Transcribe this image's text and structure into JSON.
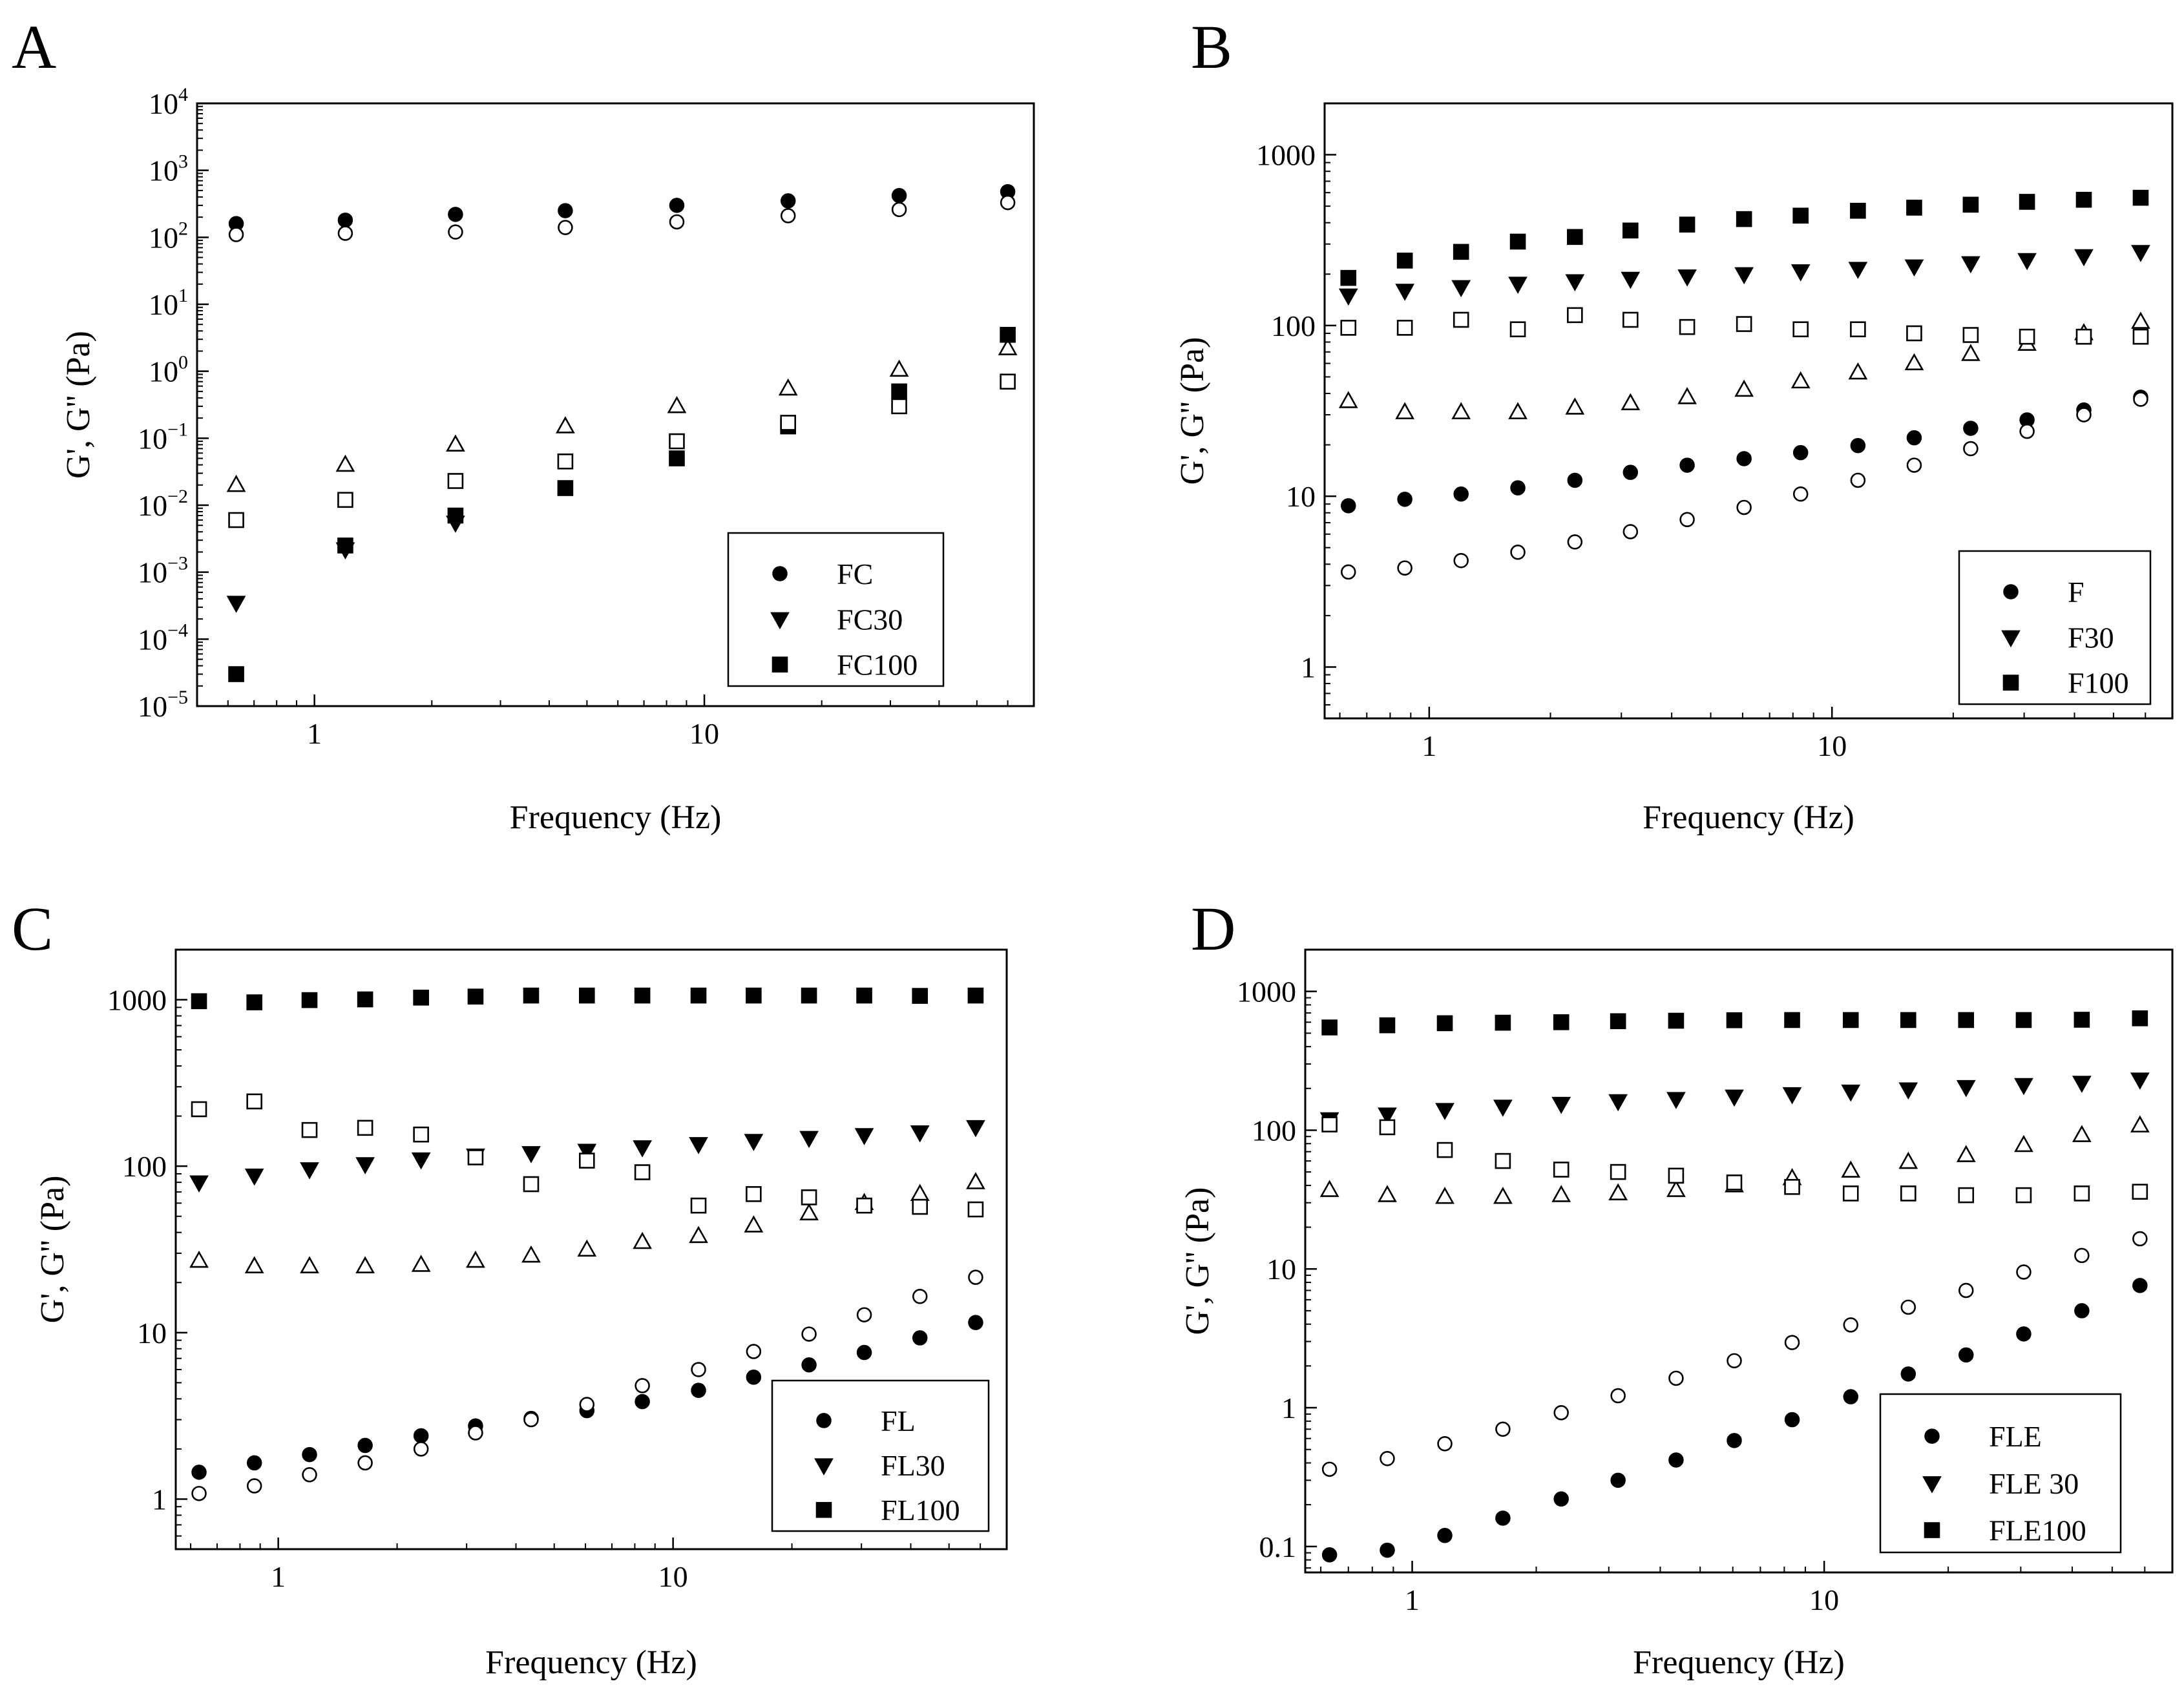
{
  "chart_data": [
    {
      "panel": "A",
      "type": "scatter",
      "xlabel": "Frequency (Hz)",
      "ylabel": "G', G'' (Pa)",
      "x_scale": "log",
      "y_scale": "log",
      "xlim": [
        0.5,
        70
      ],
      "ylim": [
        1e-05,
        10000
      ],
      "x_ticks": [
        {
          "v": 1,
          "label": "1"
        },
        {
          "v": 10,
          "label": "10"
        }
      ],
      "y_ticks": [
        {
          "v": 1e-05,
          "base": "10",
          "exp": "−5"
        },
        {
          "v": 0.0001,
          "base": "10",
          "exp": "−4"
        },
        {
          "v": 0.001,
          "base": "10",
          "exp": "−3"
        },
        {
          "v": 0.01,
          "base": "10",
          "exp": "−2"
        },
        {
          "v": 0.1,
          "base": "10",
          "exp": "−1"
        },
        {
          "v": 1,
          "base": "10",
          "exp": "0"
        },
        {
          "v": 10,
          "base": "10",
          "exp": "1"
        },
        {
          "v": 100,
          "base": "10",
          "exp": "2"
        },
        {
          "v": 1000,
          "base": "10",
          "exp": "3"
        },
        {
          "v": 10000,
          "base": "10",
          "exp": "4"
        }
      ],
      "legend": [
        "FC",
        "FC30",
        "FC100"
      ],
      "legend_position": "bottom-right",
      "series": [
        {
          "name": "FC G'",
          "marker": "circle",
          "filled": true,
          "x": [
            0.63,
            1.2,
            2.3,
            4.4,
            8.5,
            16.4,
            31.6,
            60
          ],
          "y": [
            160,
            180,
            220,
            250,
            300,
            350,
            420,
            480
          ]
        },
        {
          "name": "FC G''",
          "marker": "circle",
          "filled": false,
          "x": [
            0.63,
            1.2,
            2.3,
            4.4,
            8.5,
            16.4,
            31.6,
            60
          ],
          "y": [
            110,
            115,
            120,
            140,
            170,
            210,
            260,
            330
          ]
        },
        {
          "name": "FC30 G'",
          "marker": "triangle-down",
          "filled": true,
          "x": [
            0.63,
            1.2,
            2.3
          ],
          "y": [
            0.00035,
            0.0022,
            0.0055
          ]
        },
        {
          "name": "FC30 G''",
          "marker": "triangle-up",
          "filled": false,
          "x": [
            0.63,
            1.2,
            2.3,
            4.4,
            8.5,
            16.4,
            31.6,
            60
          ],
          "y": [
            0.02,
            0.04,
            0.08,
            0.15,
            0.3,
            0.55,
            1.05,
            2.2
          ]
        },
        {
          "name": "FC100 G'",
          "marker": "square",
          "filled": true,
          "x": [
            0.63,
            1.2,
            2.3,
            4.4,
            8.5,
            16.4,
            31.6,
            60
          ],
          "y": [
            3e-05,
            0.0025,
            0.007,
            0.018,
            0.05,
            0.15,
            0.5,
            3.5
          ]
        },
        {
          "name": "FC100 G''",
          "marker": "square",
          "filled": false,
          "x": [
            0.63,
            1.2,
            2.3,
            4.4,
            8.5,
            16.4,
            31.6,
            60
          ],
          "y": [
            0.006,
            0.012,
            0.023,
            0.045,
            0.09,
            0.17,
            0.3,
            0.7
          ]
        }
      ]
    },
    {
      "panel": "B",
      "type": "scatter",
      "xlabel": "Frequency (Hz)",
      "ylabel": "G', G'' (Pa)",
      "x_scale": "log",
      "y_scale": "log",
      "xlim": [
        0.55,
        70
      ],
      "ylim": [
        0.5,
        2000
      ],
      "x_ticks": [
        {
          "v": 1,
          "label": "1"
        },
        {
          "v": 10,
          "label": "10"
        }
      ],
      "y_ticks": [
        {
          "v": 1,
          "label": "1"
        },
        {
          "v": 10,
          "label": "10"
        },
        {
          "v": 100,
          "label": "100"
        },
        {
          "v": 1000,
          "label": "1000"
        }
      ],
      "legend": [
        "F",
        "F30",
        "F100"
      ],
      "legend_position": "bottom-right",
      "series": [
        {
          "name": "F G'",
          "marker": "circle",
          "filled": true,
          "x": [
            0.63,
            0.87,
            1.2,
            1.66,
            2.3,
            3.16,
            4.37,
            6.05,
            8.36,
            11.6,
            16,
            22.1,
            30.5,
            42.2,
            58.4
          ],
          "y": [
            8.8,
            9.6,
            10.3,
            11.2,
            12.4,
            13.8,
            15.2,
            16.6,
            18,
            19.8,
            22,
            25,
            28,
            32,
            38
          ]
        },
        {
          "name": "F G''",
          "marker": "circle",
          "filled": false,
          "x": [
            0.63,
            0.87,
            1.2,
            1.66,
            2.3,
            3.16,
            4.37,
            6.05,
            8.36,
            11.6,
            16,
            22.1,
            30.5,
            42.2,
            58.4
          ],
          "y": [
            3.6,
            3.8,
            4.2,
            4.7,
            5.4,
            6.2,
            7.3,
            8.6,
            10.3,
            12.4,
            15.2,
            19,
            24,
            30,
            37
          ]
        },
        {
          "name": "F30 G'",
          "marker": "triangle-down",
          "filled": true,
          "x": [
            0.63,
            0.87,
            1.2,
            1.66,
            2.3,
            3.16,
            4.37,
            6.05,
            8.36,
            11.6,
            16,
            22.1,
            30.5,
            42.2,
            58.4
          ],
          "y": [
            150,
            160,
            168,
            176,
            182,
            188,
            194,
            200,
            208,
            215,
            222,
            232,
            242,
            255,
            270
          ]
        },
        {
          "name": "F30 G''",
          "marker": "triangle-up",
          "filled": false,
          "x": [
            0.63,
            0.87,
            1.2,
            1.66,
            2.3,
            3.16,
            4.37,
            6.05,
            8.36,
            11.6,
            16,
            22.1,
            30.5,
            42.2,
            58.4
          ],
          "y": [
            36,
            31,
            31,
            31,
            33,
            35,
            38,
            42,
            47,
            53,
            60,
            68,
            78,
            90,
            105
          ]
        },
        {
          "name": "F100 G'",
          "marker": "square",
          "filled": true,
          "x": [
            0.63,
            0.87,
            1.2,
            1.66,
            2.3,
            3.16,
            4.37,
            6.05,
            8.36,
            11.6,
            16,
            22.1,
            30.5,
            42.2,
            58.4
          ],
          "y": [
            190,
            240,
            270,
            310,
            330,
            360,
            390,
            420,
            440,
            470,
            490,
            510,
            530,
            545,
            560
          ]
        },
        {
          "name": "F100 G''",
          "marker": "square",
          "filled": false,
          "x": [
            0.63,
            0.87,
            1.2,
            1.66,
            2.3,
            3.16,
            4.37,
            6.05,
            8.36,
            11.6,
            16,
            22.1,
            30.5,
            42.2,
            58.4
          ],
          "y": [
            97,
            97,
            108,
            95,
            115,
            108,
            98,
            102,
            95,
            95,
            90,
            88,
            86,
            86,
            86
          ]
        }
      ]
    },
    {
      "panel": "C",
      "type": "scatter",
      "xlabel": "Frequency (Hz)",
      "ylabel": "G', G'' (Pa)",
      "x_scale": "log",
      "y_scale": "log",
      "xlim": [
        0.55,
        70
      ],
      "ylim": [
        0.5,
        2000
      ],
      "x_ticks": [
        {
          "v": 1,
          "label": "1"
        },
        {
          "v": 10,
          "label": "10"
        }
      ],
      "y_ticks": [
        {
          "v": 1,
          "label": "1"
        },
        {
          "v": 10,
          "label": "10"
        },
        {
          "v": 100,
          "label": "100"
        },
        {
          "v": 1000,
          "label": "1000"
        }
      ],
      "legend": [
        "FL",
        "FL30",
        "FL100"
      ],
      "legend_position": "bottom-right",
      "series": [
        {
          "name": "FL G'",
          "marker": "circle",
          "filled": true,
          "x": [
            0.63,
            0.87,
            1.2,
            1.66,
            2.3,
            3.16,
            4.37,
            6.05,
            8.36,
            11.6,
            16,
            22.1,
            30.5,
            42.2,
            58.4
          ],
          "y": [
            1.45,
            1.65,
            1.85,
            2.1,
            2.4,
            2.75,
            3.05,
            3.4,
            3.85,
            4.5,
            5.4,
            6.4,
            7.6,
            9.3,
            11.5
          ]
        },
        {
          "name": "FL G''",
          "marker": "circle",
          "filled": false,
          "x": [
            0.63,
            0.87,
            1.2,
            1.66,
            2.3,
            3.16,
            4.37,
            6.05,
            8.36,
            11.6,
            16,
            22.1,
            30.5,
            42.2,
            58.4
          ],
          "y": [
            1.08,
            1.2,
            1.4,
            1.65,
            2.0,
            2.5,
            3.0,
            3.7,
            4.8,
            6.0,
            7.7,
            9.8,
            12.8,
            16.5,
            21.5
          ]
        },
        {
          "name": "FL30 G'",
          "marker": "triangle-down",
          "filled": true,
          "x": [
            0.63,
            0.87,
            1.2,
            1.66,
            2.3,
            3.16,
            4.37,
            6.05,
            8.36,
            11.6,
            16,
            22.1,
            30.5,
            42.2,
            58.4
          ],
          "y": [
            80,
            88,
            96,
            103,
            110,
            116,
            120,
            124,
            130,
            136,
            142,
            148,
            154,
            160,
            172
          ]
        },
        {
          "name": "FL30 G''",
          "marker": "triangle-up",
          "filled": false,
          "x": [
            0.63,
            0.87,
            1.2,
            1.66,
            2.3,
            3.16,
            4.37,
            6.05,
            8.36,
            11.6,
            16,
            22.1,
            30.5,
            42.2,
            58.4
          ],
          "y": [
            27,
            25,
            25,
            25,
            25.5,
            27,
            29,
            31.5,
            35,
            38,
            44,
            52,
            60,
            68,
            80
          ]
        },
        {
          "name": "FL100 G'",
          "marker": "square",
          "filled": true,
          "x": [
            0.63,
            0.87,
            1.2,
            1.66,
            2.3,
            3.16,
            4.37,
            6.05,
            8.36,
            11.6,
            16,
            22.1,
            30.5,
            42.2,
            58.4
          ],
          "y": [
            980,
            965,
            995,
            1005,
            1030,
            1045,
            1060,
            1060,
            1060,
            1060,
            1060,
            1060,
            1060,
            1055,
            1060
          ]
        },
        {
          "name": "FL100 G''",
          "marker": "square",
          "filled": false,
          "x": [
            0.63,
            0.87,
            1.2,
            1.66,
            2.3,
            3.16,
            4.37,
            6.05,
            8.36,
            11.6,
            16,
            22.1,
            30.5,
            42.2,
            58.4
          ],
          "y": [
            220,
            245,
            165,
            170,
            155,
            113,
            78,
            108,
            92,
            58,
            68,
            65,
            58,
            57,
            55
          ]
        }
      ]
    },
    {
      "panel": "D",
      "type": "scatter",
      "xlabel": "Frequency (Hz)",
      "ylabel": "G', G'' (Pa)",
      "x_scale": "log",
      "y_scale": "log",
      "xlim": [
        0.55,
        70
      ],
      "ylim": [
        0.065,
        2000
      ],
      "x_ticks": [
        {
          "v": 1,
          "label": "1"
        },
        {
          "v": 10,
          "label": "10"
        }
      ],
      "y_ticks": [
        {
          "v": 0.1,
          "label": "0.1"
        },
        {
          "v": 1,
          "label": "1"
        },
        {
          "v": 10,
          "label": "10"
        },
        {
          "v": 100,
          "label": "100"
        },
        {
          "v": 1000,
          "label": "1000"
        }
      ],
      "legend": [
        "FLE",
        "FLE 30",
        "FLE100"
      ],
      "legend_position": "bottom-right",
      "series": [
        {
          "name": "FLE G'",
          "marker": "circle",
          "filled": true,
          "x": [
            0.63,
            0.87,
            1.2,
            1.66,
            2.3,
            3.16,
            4.37,
            6.05,
            8.36,
            11.6,
            16,
            22.1,
            30.5,
            42.2,
            58.4
          ],
          "y": [
            0.087,
            0.094,
            0.12,
            0.16,
            0.22,
            0.3,
            0.42,
            0.58,
            0.82,
            1.2,
            1.75,
            2.4,
            3.4,
            5.0,
            7.6
          ]
        },
        {
          "name": "FLE G''",
          "marker": "circle",
          "filled": false,
          "x": [
            0.63,
            0.87,
            1.2,
            1.66,
            2.3,
            3.16,
            4.37,
            6.05,
            8.36,
            11.6,
            16,
            22.1,
            30.5,
            42.2,
            58.4
          ],
          "y": [
            0.36,
            0.43,
            0.55,
            0.7,
            0.92,
            1.22,
            1.63,
            2.18,
            2.95,
            3.95,
            5.3,
            7.0,
            9.5,
            12.5,
            16.5
          ]
        },
        {
          "name": "FLE 30 G'",
          "marker": "triangle-down",
          "filled": true,
          "x": [
            0.63,
            0.87,
            1.2,
            1.66,
            2.3,
            3.16,
            4.37,
            6.05,
            8.36,
            11.6,
            16,
            22.1,
            30.5,
            42.2,
            58.4
          ],
          "y": [
            120,
            130,
            140,
            148,
            155,
            162,
            168,
            175,
            182,
            190,
            197,
            205,
            212,
            220,
            232
          ]
        },
        {
          "name": "FLE 30 G''",
          "marker": "triangle-up",
          "filled": false,
          "x": [
            0.63,
            0.87,
            1.2,
            1.66,
            2.3,
            3.16,
            4.37,
            6.05,
            8.36,
            11.6,
            16,
            22.1,
            30.5,
            42.2,
            58.4
          ],
          "y": [
            37,
            34,
            33,
            33,
            34,
            35,
            37,
            40,
            45,
            51,
            59,
            66,
            78,
            92,
            108
          ]
        },
        {
          "name": "FLE100 G'",
          "marker": "square",
          "filled": true,
          "x": [
            0.63,
            0.87,
            1.2,
            1.66,
            2.3,
            3.16,
            4.37,
            6.05,
            8.36,
            11.6,
            16,
            22.1,
            30.5,
            42.2,
            58.4
          ],
          "y": [
            550,
            570,
            590,
            595,
            600,
            610,
            615,
            620,
            622,
            622,
            622,
            622,
            622,
            625,
            640
          ]
        },
        {
          "name": "FLE100 G''",
          "marker": "square",
          "filled": false,
          "x": [
            0.63,
            0.87,
            1.2,
            1.66,
            2.3,
            3.16,
            4.37,
            6.05,
            8.36,
            11.6,
            16,
            22.1,
            30.5,
            42.2,
            58.4
          ],
          "y": [
            110,
            105,
            72,
            60,
            52,
            50,
            47,
            42,
            39,
            35,
            35,
            34,
            34,
            35,
            36
          ]
        }
      ]
    }
  ]
}
